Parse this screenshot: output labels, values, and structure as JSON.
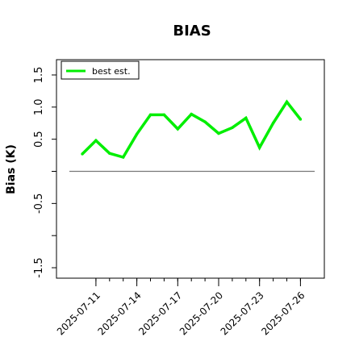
{
  "chart_data": {
    "type": "line",
    "title": "BIAS",
    "xlabel": "",
    "ylabel": "Bias (K)",
    "x": [
      "2025-07-10",
      "2025-07-11",
      "2025-07-12",
      "2025-07-13",
      "2025-07-14",
      "2025-07-15",
      "2025-07-16",
      "2025-07-17",
      "2025-07-18",
      "2025-07-19",
      "2025-07-20",
      "2025-07-21",
      "2025-07-22",
      "2025-07-23",
      "2025-07-24",
      "2025-07-25",
      "2025-07-26"
    ],
    "series": [
      {
        "name": "best est.",
        "color": "#00ee00",
        "values": [
          0.27,
          0.48,
          0.28,
          0.22,
          0.58,
          0.88,
          0.88,
          0.66,
          0.89,
          0.77,
          0.59,
          0.68,
          0.83,
          0.37,
          0.75,
          1.08,
          0.81
        ]
      }
    ],
    "reference_line": {
      "y": 0.0,
      "color": "#777777"
    },
    "ylim": [
      -1.6,
      1.6
    ],
    "yticks": [
      -1.5,
      -1.0,
      -0.5,
      0.0,
      0.5,
      1.0,
      1.5
    ],
    "ytick_labels": [
      "-1.5",
      "",
      "-0.5",
      "",
      "0.5",
      "1.0",
      "1.5"
    ],
    "xticks": [
      "2025-07-11",
      "2025-07-14",
      "2025-07-17",
      "2025-07-20",
      "2025-07-23",
      "2025-07-26"
    ],
    "xtick_minor": [
      "2025-07-11",
      "2025-07-12",
      "2025-07-13",
      "2025-07-14",
      "2025-07-15",
      "2025-07-16",
      "2025-07-17",
      "2025-07-18",
      "2025-07-19",
      "2025-07-20",
      "2025-07-21",
      "2025-07-22",
      "2025-07-23",
      "2025-07-24",
      "2025-07-25",
      "2025-07-26"
    ],
    "legend": {
      "placement": "top-left",
      "entries": [
        "best est."
      ]
    },
    "grid": false
  }
}
